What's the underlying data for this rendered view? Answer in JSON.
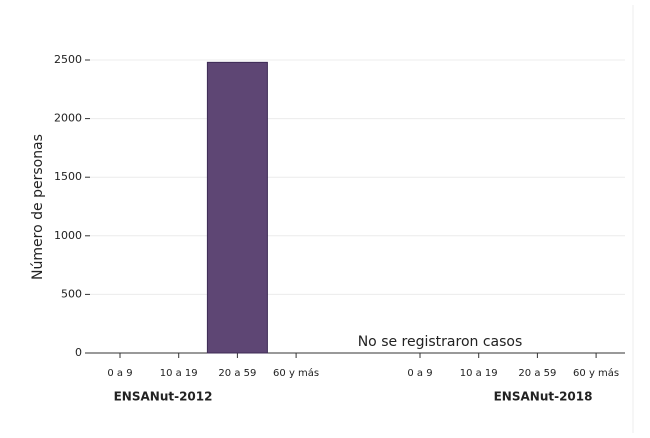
{
  "chart_data": {
    "type": "bar",
    "ylabel": "Número de personas",
    "annotation": "No se registraron casos",
    "groups": [
      {
        "name": "ENSANut-2012",
        "categories": [
          "0 a 9",
          "10 a 19",
          "20 a 59",
          "60 y más"
        ],
        "values": [
          0,
          0,
          2480,
          0
        ]
      },
      {
        "name": "ENSANut-2018",
        "categories": [
          "0 a 9",
          "10 a 19",
          "20 a 59",
          "60 y más"
        ],
        "values": [
          0,
          0,
          0,
          0
        ]
      }
    ],
    "color": "#5e4674",
    "ylim": [
      0,
      2500
    ],
    "yticks": [
      0,
      500,
      1000,
      1500,
      2000,
      2500
    ],
    "grid": true
  }
}
